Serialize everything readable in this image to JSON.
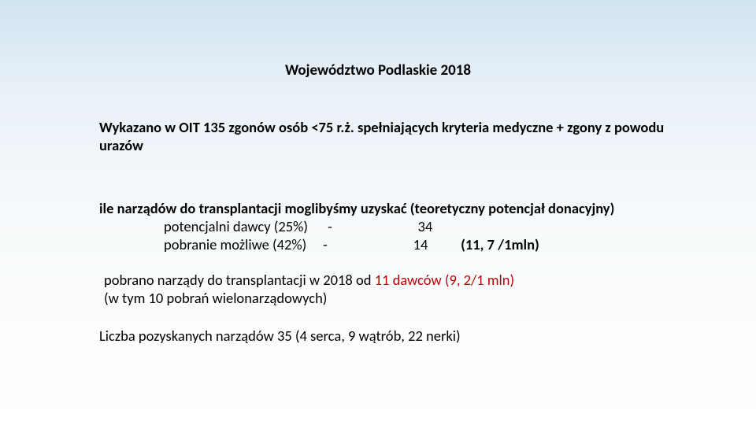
{
  "title": "Województwo Podlaskie 2018",
  "p1": "Wykazano w OIT  135 zgonów  osób <75 r.ż. spełniających kryteria medyczne + zgony z powodu urazów",
  "p2_line1": "ile narządów do transplantacji moglibyśmy uzyskać (teoretyczny potencjał donacyjny)",
  "p2_row1_label": "potencjalni dawcy (25%)",
  "p2_row1_dash": "-",
  "p2_row1_val": "34",
  "p2_row2_label": "pobranie możliwe (42%)",
  "p2_row2_dash": "-",
  "p2_row2_val": "14",
  "p2_row2_extra": "(11, 7 /1mln)",
  "p3_pre": "pobrano  narządy do transplantacji w 2018  od  ",
  "p3_red": "11 dawców  (9, 2/1 mln)",
  "p3_line2": "(w tym 10 pobrań wielonarządowych)",
  "p4": "Liczba pozyskanych narządów 35 (4 serca, 9 wątrób, 22 nerki)"
}
